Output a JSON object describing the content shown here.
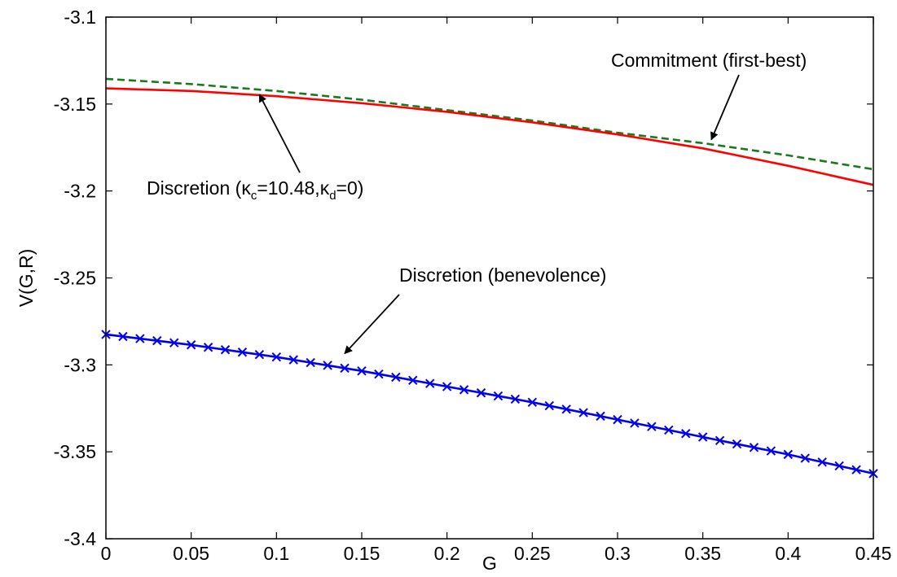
{
  "chart_data": {
    "type": "line",
    "xlabel": "G",
    "ylabel": "V(G,R)",
    "xlim": [
      0,
      0.45
    ],
    "ylim": [
      -3.4,
      -3.1
    ],
    "x_ticks": [
      0,
      0.05,
      0.1,
      0.15,
      0.2,
      0.25,
      0.3,
      0.35,
      0.4,
      0.45
    ],
    "x_tick_labels": [
      "0",
      "0.05",
      "0.1",
      "0.15",
      "0.2",
      "0.25",
      "0.3",
      "0.35",
      "0.4",
      "0.45"
    ],
    "y_ticks": [
      -3.1,
      -3.15,
      -3.2,
      -3.25,
      -3.3,
      -3.35,
      -3.4
    ],
    "y_tick_labels": [
      "-3.1",
      "-3.15",
      "-3.2",
      "-3.25",
      "-3.3",
      "-3.35",
      "-3.4"
    ],
    "grid": false,
    "x": [
      0,
      0.05,
      0.1,
      0.15,
      0.2,
      0.25,
      0.3,
      0.35,
      0.4,
      0.45
    ],
    "series": [
      {
        "color": "#1a7a1a",
        "style": "dashed",
        "values": [
          -3.1355,
          -3.1385,
          -3.1425,
          -3.1475,
          -3.1535,
          -3.1595,
          -3.1665,
          -3.1725,
          -3.1795,
          -3.1875
        ]
      },
      {
        "color": "#ff0000",
        "style": "solid",
        "values": [
          -3.141,
          -3.1425,
          -3.1455,
          -3.1495,
          -3.1545,
          -3.1605,
          -3.1675,
          -3.1755,
          -3.1855,
          -3.1965
        ]
      },
      {
        "color": "#0000ee",
        "style": "solid-x-markers",
        "marker_step": 0.01,
        "values": [
          -3.2825,
          -3.2885,
          -3.2955,
          -3.3035,
          -3.3125,
          -3.3215,
          -3.3315,
          -3.3415,
          -3.3515,
          -3.3625
        ]
      }
    ],
    "annotations": [
      {
        "text": "Commitment (first-best)",
        "arrow_to": [
          0.355,
          -3.1705
        ]
      },
      {
        "text_main": "Discretion (",
        "k1": "κ",
        "k1_sub": "c",
        "mid": "=10.48,",
        "k2": "κ",
        "k2_sub": "d",
        "end": "=0)",
        "arrow_to": [
          0.09,
          -3.1445
        ]
      },
      {
        "text": "Discretion (benevolence)",
        "arrow_to": [
          0.14,
          -3.2935
        ]
      }
    ]
  }
}
